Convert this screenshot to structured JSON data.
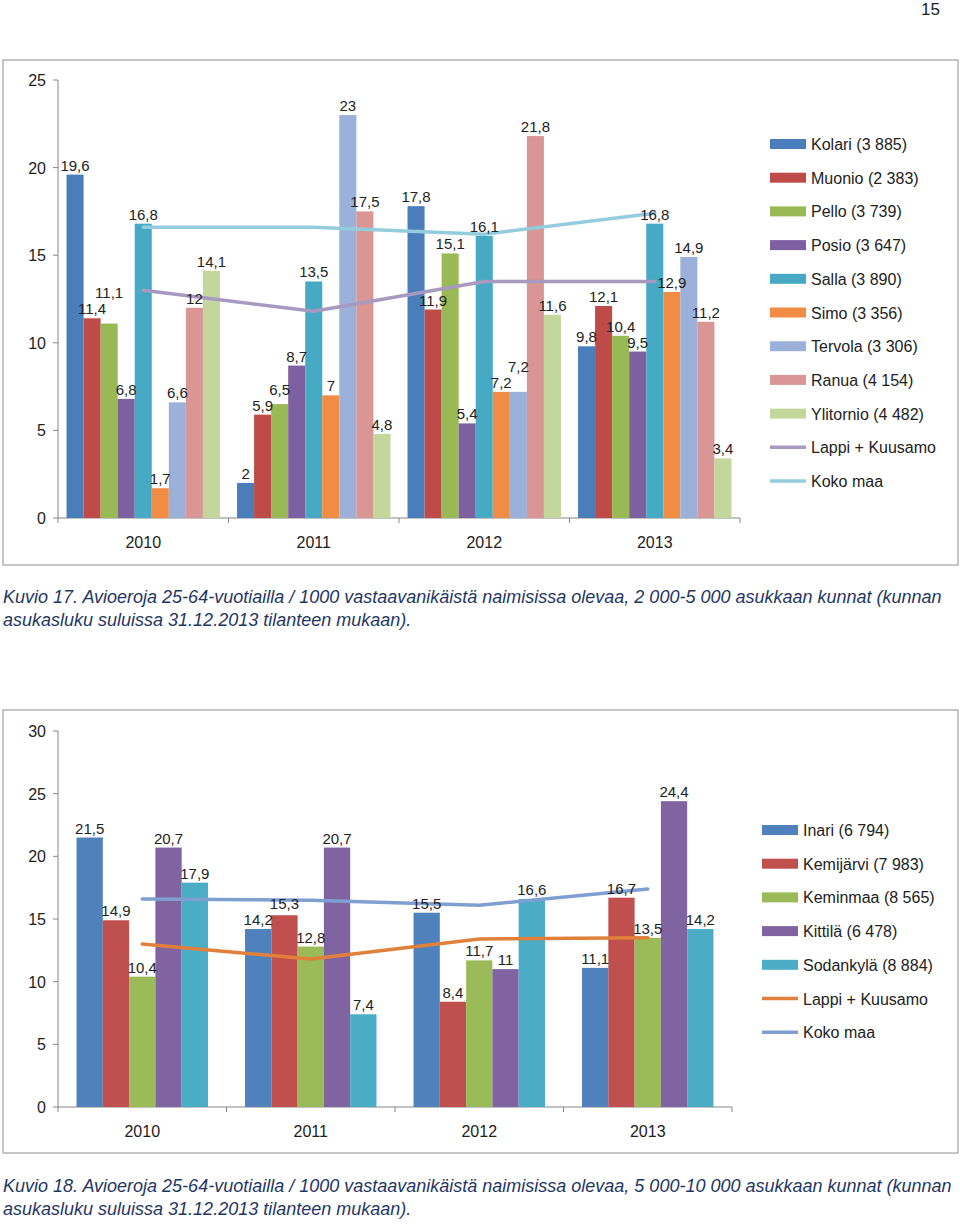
{
  "page": {
    "number": "15"
  },
  "chart_data": [
    {
      "type": "bar",
      "title": "Kuvio 17. Avioeroja 25-64-vuotiailla / 1000 vastaavanikäistä naimisissa olevaa, 2 000-5 000 asukkaan kunnat (kunnan asukasluku suluissa 31.12.2013 tilanteen mukaan).",
      "categories": [
        "2010",
        "2011",
        "2012",
        "2013"
      ],
      "series": [
        {
          "name": "Kolari (3 885)",
          "color": "#4a7ebb",
          "values": [
            19.6,
            2,
            17.8,
            9.8
          ],
          "value_labels": [
            "19,6",
            "2",
            "17,8",
            "9,8"
          ]
        },
        {
          "name": "Muonio (2 383)",
          "color": "#be4b48",
          "values": [
            11.4,
            5.9,
            11.9,
            12.1
          ],
          "value_labels": [
            "11,4",
            "5,9",
            "11,9",
            "12,1"
          ]
        },
        {
          "name": "Pello (3 739)",
          "color": "#98b954",
          "values": [
            11.1,
            6.5,
            15.1,
            10.4
          ],
          "value_labels": [
            "11,1",
            "6,5",
            "15,1",
            "10,4"
          ]
        },
        {
          "name": "Posio (3 647)",
          "color": "#7d60a0",
          "values": [
            6.8,
            8.7,
            5.4,
            9.5
          ],
          "value_labels": [
            "6,8",
            "8,7",
            "5,4",
            "9,5"
          ]
        },
        {
          "name": "Salla (3 890)",
          "color": "#46aac5",
          "values": [
            16.8,
            13.5,
            16.1,
            16.8
          ],
          "value_labels": [
            "16,8",
            "13,5",
            "16,1",
            "16,8"
          ]
        },
        {
          "name": "Simo (3 356)",
          "color": "#f08c44",
          "values": [
            1.7,
            7,
            7.2,
            12.9
          ],
          "value_labels": [
            "1,7",
            "7",
            "7,2",
            "12,9"
          ]
        },
        {
          "name": "Tervola (3 306)",
          "color": "#9cb1da",
          "values": [
            6.6,
            23,
            7.2,
            14.9
          ],
          "value_labels": [
            "6,6",
            "23",
            "7,2",
            "14,9"
          ]
        },
        {
          "name": "Ranua (4 154)",
          "color": "#d99694",
          "values": [
            12,
            17.5,
            21.8,
            11.2
          ],
          "value_labels": [
            "12",
            "17,5",
            "21,8",
            "11,2"
          ]
        },
        {
          "name": "Ylitornio (4 482)",
          "color": "#c3d69b",
          "values": [
            14.1,
            4.8,
            11.6,
            3.4
          ],
          "value_labels": [
            "14,1",
            "4,8",
            "11,6",
            "3,4"
          ]
        },
        {
          "name": "Lappi + Kuusamo",
          "type": "line",
          "color": "#a899c0",
          "values": [
            13,
            11.8,
            13.5,
            13.5
          ]
        },
        {
          "name": "Koko maa",
          "type": "line",
          "color": "#93cddd",
          "values": [
            16.6,
            16.6,
            16.2,
            17.4
          ]
        }
      ],
      "ylim": [
        0,
        25
      ],
      "yticks": [
        0,
        5,
        10,
        15,
        20,
        25
      ],
      "grid": false,
      "legend": "right",
      "data_labels": true
    },
    {
      "type": "bar",
      "title": "Kuvio 18. Avioeroja 25-64-vuotiailla / 1000 vastaavanikäistä naimisissa olevaa, 5 000-10 000 asukkaan kunnat (kunnan asukasluku suluissa 31.12.2013 tilanteen mukaan).",
      "categories": [
        "2010",
        "2011",
        "2012",
        "2013"
      ],
      "series": [
        {
          "name": "Inari (6 794)",
          "color": "#4f81bd",
          "values": [
            21.5,
            14.2,
            15.5,
            11.1
          ],
          "value_labels": [
            "21,5",
            "14,2",
            "15,5",
            "11,1"
          ]
        },
        {
          "name": "Kemijärvi (7 983)",
          "color": "#c0504d",
          "values": [
            14.9,
            15.3,
            8.4,
            16.7
          ],
          "value_labels": [
            "14,9",
            "15,3",
            "8,4",
            "16,7"
          ]
        },
        {
          "name": "Keminmaa (8 565)",
          "color": "#9bbb59",
          "values": [
            10.4,
            12.8,
            11.7,
            13.5
          ],
          "value_labels": [
            "10,4",
            "12,8",
            "11,7",
            "13,5"
          ]
        },
        {
          "name": "Kittilä (6 478)",
          "color": "#8064a2",
          "values": [
            20.7,
            20.7,
            11,
            24.4
          ],
          "value_labels": [
            "20,7",
            "20,7",
            "11",
            "24,4"
          ]
        },
        {
          "name": "Sodankylä (8 884)",
          "color": "#4bacc6",
          "values": [
            17.9,
            7.4,
            16.6,
            14.2
          ],
          "value_labels": [
            "17,9",
            "7,4",
            "16,6",
            "14,2"
          ]
        },
        {
          "name": "Lappi + Kuusamo",
          "type": "line",
          "color": "#e0803a",
          "values": [
            13,
            11.8,
            13.4,
            13.5
          ]
        },
        {
          "name": "Koko maa",
          "type": "line",
          "color": "#7f9fd0",
          "values": [
            16.6,
            16.5,
            16.1,
            17.4
          ]
        }
      ],
      "ylim": [
        0,
        30
      ],
      "yticks": [
        0,
        5,
        10,
        15,
        20,
        25,
        30
      ],
      "grid": false,
      "legend": "right",
      "data_labels": true
    }
  ]
}
